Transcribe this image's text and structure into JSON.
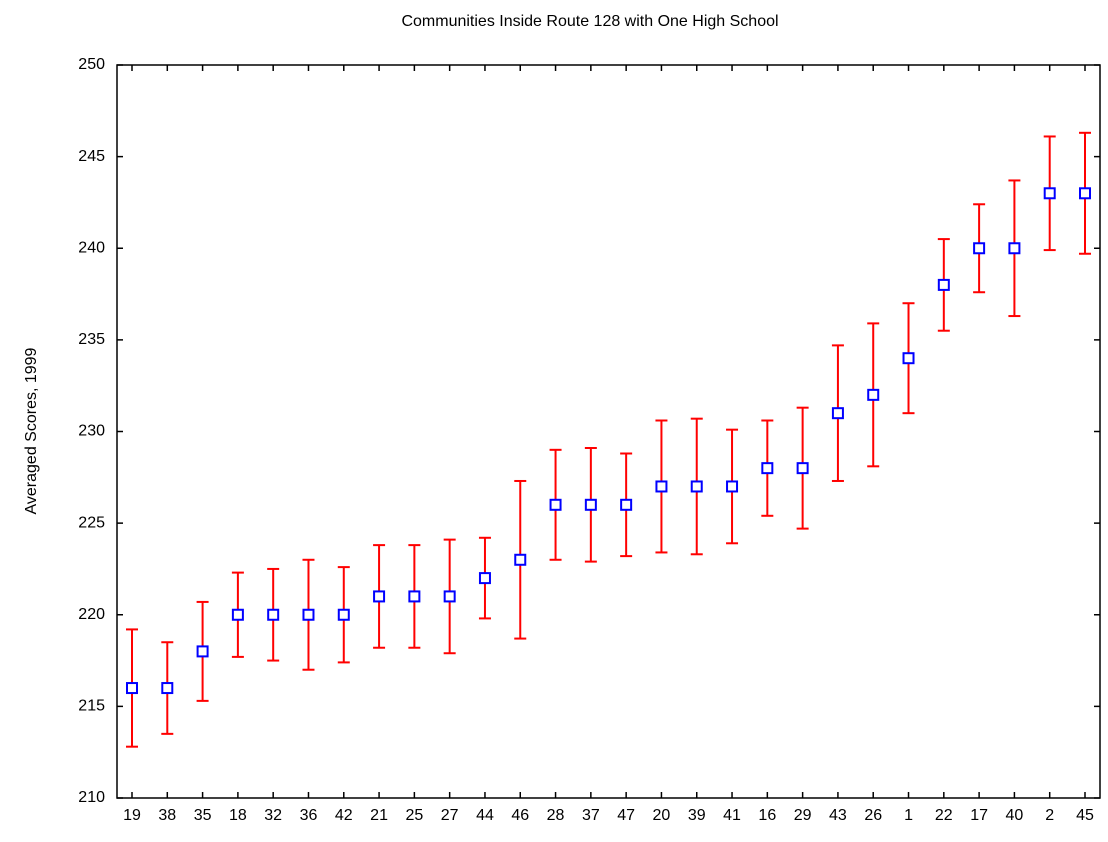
{
  "chart_data": {
    "type": "errorbar",
    "title": "Communities Inside Route 128 with One High School",
    "y_label": "Averaged Scores, 1999",
    "categories": [
      "19",
      "38",
      "35",
      "18",
      "32",
      "36",
      "42",
      "21",
      "25",
      "27",
      "44",
      "46",
      "28",
      "37",
      "47",
      "20",
      "39",
      "41",
      "16",
      "29",
      "43",
      "26",
      "1",
      "22",
      "17",
      "40",
      "2",
      "45"
    ],
    "series": [
      {
        "values": [
          216,
          216,
          218,
          220,
          220,
          220,
          220,
          221,
          221,
          221,
          222,
          223,
          226,
          226,
          226,
          227,
          227,
          227,
          228,
          228,
          231,
          232,
          234,
          238,
          240,
          240,
          243,
          243
        ],
        "errors": [
          3.2,
          2.5,
          2.7,
          2.3,
          2.5,
          3.0,
          2.6,
          2.8,
          2.8,
          3.1,
          2.2,
          4.3,
          3.0,
          3.1,
          2.8,
          3.6,
          3.7,
          3.1,
          2.6,
          3.3,
          3.7,
          3.9,
          3.0,
          2.5,
          2.4,
          3.7,
          3.1,
          3.3
        ],
        "color": "#0000ff",
        "error_color": "#ff0000"
      }
    ],
    "ylim": [
      210,
      250
    ],
    "yticks": [
      210,
      215,
      220,
      225,
      230,
      235,
      240,
      245,
      250
    ]
  }
}
